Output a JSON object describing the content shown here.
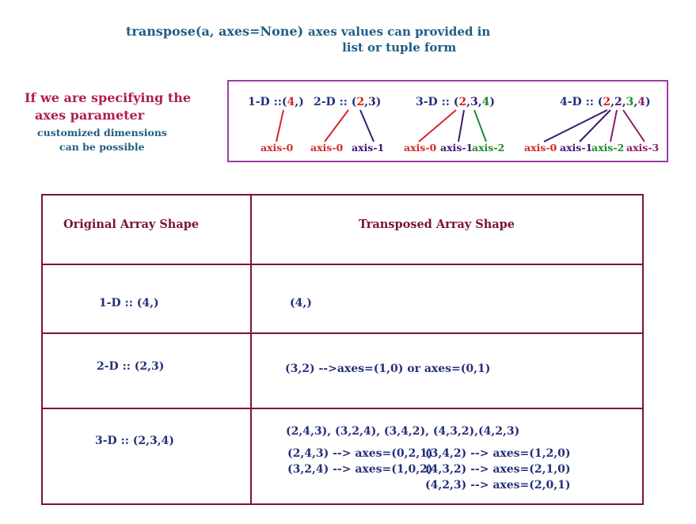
{
  "signature": "transpose(a, axes=None)",
  "axes_note": {
    "line1": "axes values can provided in",
    "line2": "list or tuple form"
  },
  "side_note": {
    "line1": "If we are  specifying the",
    "line2": "axes parameter",
    "line3": "customized dimensions",
    "line4": "can be possible"
  },
  "axes_box": {
    "one_d": {
      "prefix": "1-D ::(",
      "dims": [
        "4"
      ],
      "suffix": ",)",
      "labels": [
        "axis-0"
      ]
    },
    "two_d": {
      "prefix": "2-D :: (",
      "dims": [
        "2",
        "3"
      ],
      "suffix": ")",
      "labels": [
        "axis-0",
        "axis-1"
      ]
    },
    "three_d": {
      "prefix": "3-D :: (",
      "dims": [
        "2",
        "3",
        "4"
      ],
      "suffix": ")",
      "labels": [
        "axis-0",
        "axis-1",
        "axis-2"
      ]
    },
    "four_d": {
      "prefix": "4-D :: (",
      "dims": [
        "2",
        "2",
        "3",
        "4"
      ],
      "suffix": ")",
      "labels": [
        "axis-0",
        "axis-1",
        "axis-2",
        "axis-3"
      ]
    }
  },
  "table": {
    "headers": [
      "Original Array Shape",
      "Transposed Array Shape"
    ],
    "rows": [
      {
        "original": "1-D :: (4,)",
        "transposed": [
          "(4,)"
        ]
      },
      {
        "original": "2-D :: (2,3)",
        "transposed": [
          "(3,2) -->axes=(1,0) or axes=(0,1)"
        ]
      },
      {
        "original": "3-D :: (2,3,4)",
        "transposed": [
          "(2,4,3), (3,2,4), (3,4,2), (4,3,2),(4,2,3)",
          "(2,4,3) --> axes=(0,2,1)",
          "(3,2,4) --> axes=(1,0,2)",
          "(3,4,2) --> axes=(1,2,0)",
          "(4,3,2) --> axes=(2,1,0)",
          "(4,2,3) --> axes=(2,0,1)"
        ]
      }
    ]
  },
  "colors": {
    "teal": "#1f5d84",
    "navy": "#24307a",
    "maroon": "#7a1530",
    "magenta": "#b01d56",
    "axis_red": "#d42828",
    "axis_purple": "#3c1a72",
    "axis_green": "#1f8a2c",
    "axis_violet": "#8a1c6a",
    "box_border": "#9b3fa6"
  }
}
